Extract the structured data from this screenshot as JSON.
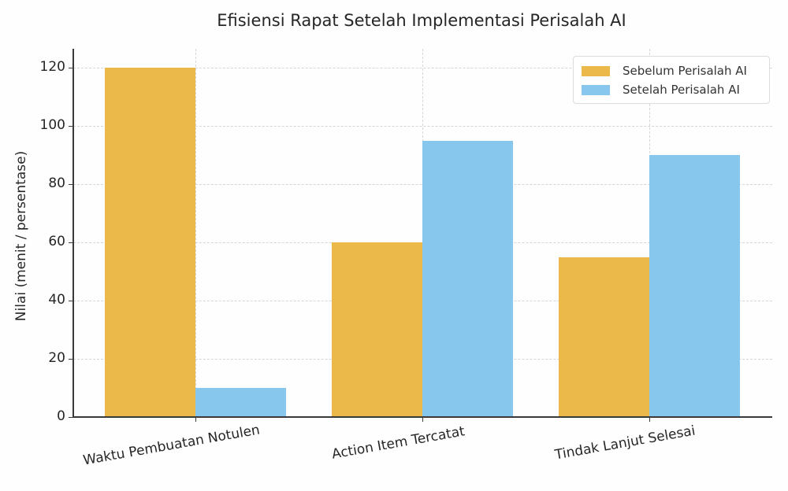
{
  "chart_data": {
    "type": "bar",
    "title": "Efisiensi Rapat Setelah Implementasi Perisalah AI",
    "xlabel": "",
    "ylabel": "Nilai (menit / persentase)",
    "categories": [
      "Waktu Pembuatan Notulen",
      "Action Item Tercatat",
      "Tindak Lanjut Selesai"
    ],
    "series": [
      {
        "name": "Sebelum Perisalah AI",
        "color": "#EBB84A",
        "values": [
          120,
          60,
          55
        ]
      },
      {
        "name": "Setelah Perisalah AI",
        "color": "#87C7EE",
        "values": [
          10,
          95,
          90
        ]
      }
    ],
    "ylim": [
      0,
      126
    ],
    "yticks": [
      0,
      20,
      40,
      60,
      80,
      100,
      120
    ],
    "grid": true,
    "legend_position": "upper right"
  }
}
